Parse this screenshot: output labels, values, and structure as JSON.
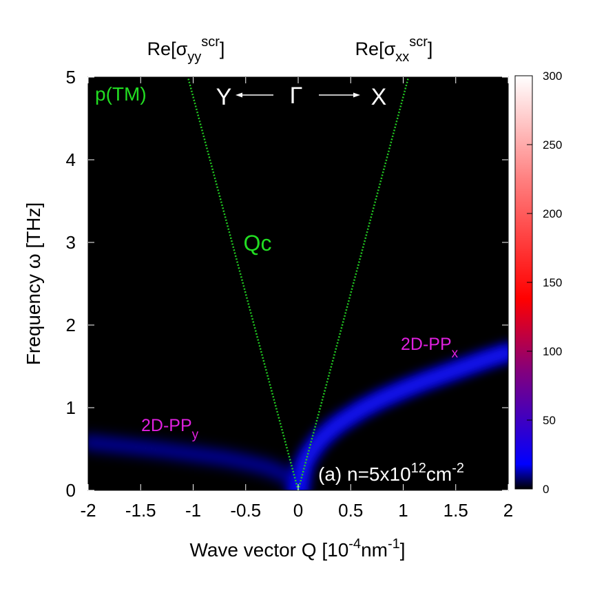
{
  "chart_data": {
    "type": "heatmap",
    "title_left": {
      "base": "Re[σ",
      "sub": "yy",
      "sup": "scr",
      "end": "]"
    },
    "title_right": {
      "base": "Re[σ",
      "sub": "xx",
      "sup": "scr",
      "end": "]"
    },
    "xlabel": {
      "base": "Wave vector Q [10",
      "sup1": "-4",
      "mid": "nm",
      "sup2": "-1",
      "end": "]"
    },
    "ylabel": "Frequency ω [THz]",
    "xlim": [
      -2,
      2
    ],
    "ylim": [
      0,
      5
    ],
    "xticks": [
      "-2",
      "-1.5",
      "-1",
      "-0.5",
      "0",
      "0.5",
      "1",
      "1.5",
      "2"
    ],
    "yticks": [
      "0",
      "1",
      "2",
      "3",
      "4",
      "5"
    ],
    "colorbar": {
      "range": [
        0,
        300
      ],
      "ticks": [
        "0",
        "50",
        "100",
        "150",
        "200",
        "250",
        "300"
      ],
      "colors": [
        "#000000",
        "#0000ff",
        "#800080",
        "#ff0000",
        "#ff8080",
        "#ffffff"
      ]
    },
    "annotations": {
      "mode": "p(TM)",
      "path": {
        "left": "Y",
        "center": "Γ",
        "right": "X"
      },
      "cone": "Qc",
      "branch_y": {
        "base": "2D-PP",
        "sub": "y"
      },
      "branch_x": {
        "base": "2D-PP",
        "sub": "x"
      },
      "density": {
        "base": "(a) n=5x10",
        "sup1": "12",
        "mid": "cm",
        "sup2": "-2"
      }
    },
    "lightcone": {
      "color": "#22cc22",
      "left": [
        [
          0,
          0
        ],
        [
          -1.05,
          5
        ]
      ],
      "right": [
        [
          0,
          0
        ],
        [
          1.05,
          5
        ]
      ]
    },
    "series": [
      {
        "name": "2D-PP_x",
        "color": "#0000ff",
        "x": [
          0,
          0.05,
          0.1,
          0.2,
          0.3,
          0.4,
          0.5,
          0.6,
          0.8,
          1.0,
          1.2,
          1.4,
          1.6,
          1.8,
          2.0
        ],
        "y": [
          0,
          0.3,
          0.43,
          0.6,
          0.72,
          0.82,
          0.9,
          0.98,
          1.11,
          1.22,
          1.32,
          1.41,
          1.5,
          1.59,
          1.67
        ]
      },
      {
        "name": "2D-PP_y",
        "color": "#0000ff",
        "x": [
          0,
          -0.05,
          -0.1,
          -0.2,
          -0.3,
          -0.5,
          -0.7,
          -1.0,
          -1.3,
          -1.6,
          -2.0
        ],
        "y": [
          0,
          0.12,
          0.17,
          0.23,
          0.28,
          0.34,
          0.39,
          0.44,
          0.49,
          0.53,
          0.58
        ]
      }
    ]
  }
}
